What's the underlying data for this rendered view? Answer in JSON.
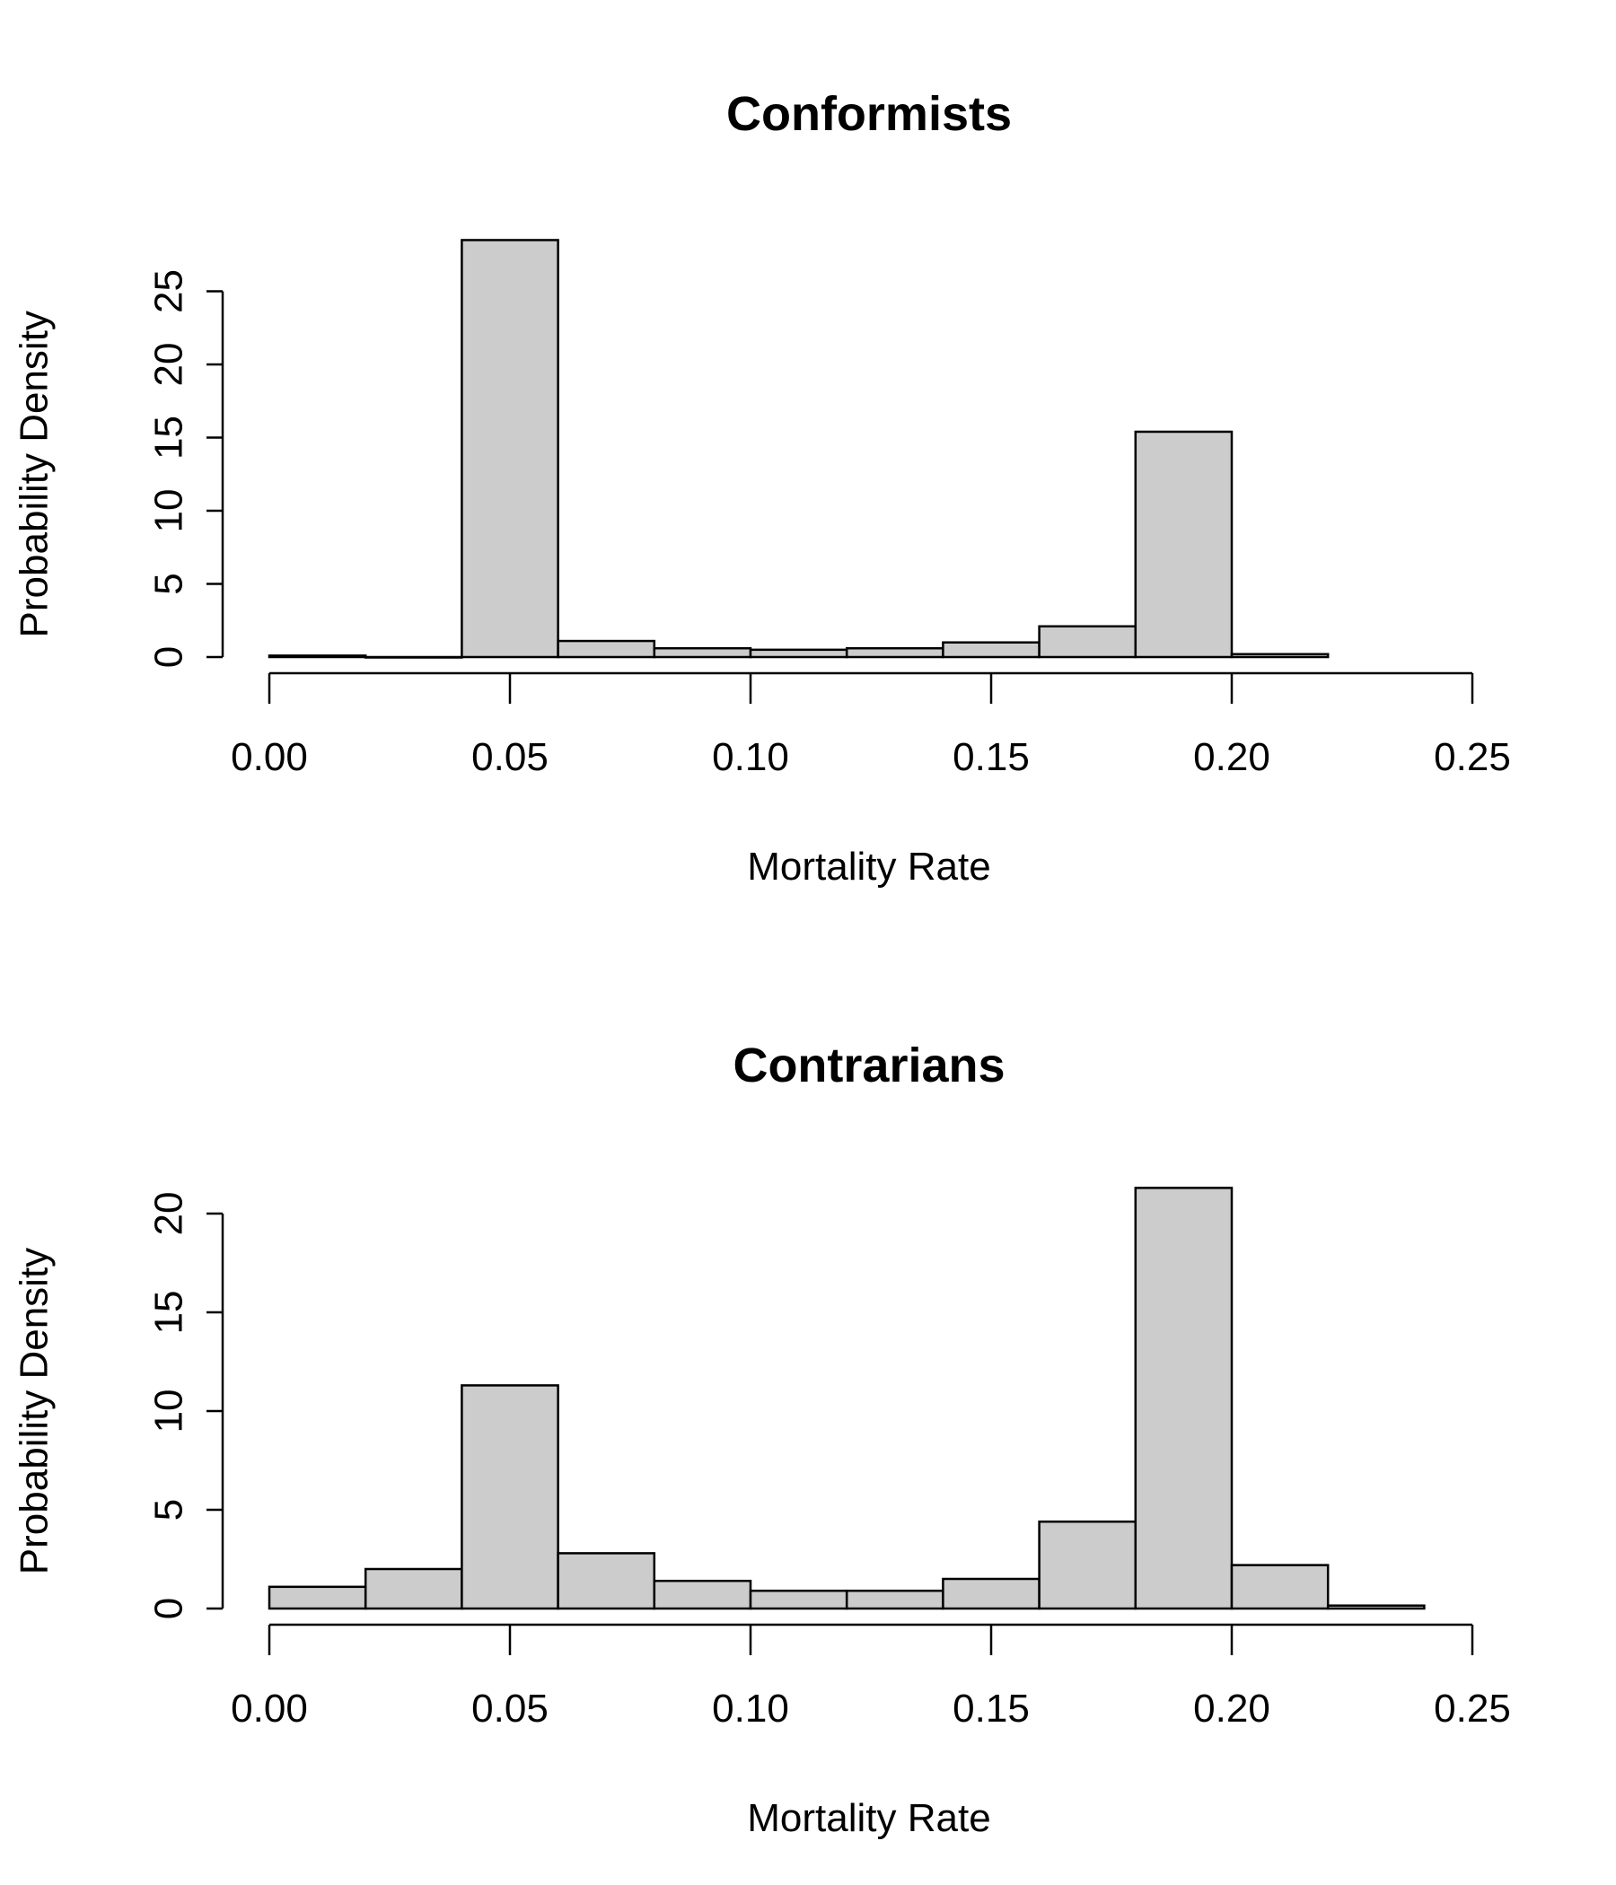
{
  "chart_data": [
    {
      "type": "bar",
      "title": "Conformists",
      "xlabel": "Mortality Rate",
      "ylabel": "Probability Density",
      "bin_edges": [
        0.0,
        0.02,
        0.04,
        0.06,
        0.08,
        0.1,
        0.12,
        0.14,
        0.16,
        0.18,
        0.2,
        0.22
      ],
      "values": [
        0.1,
        0.0,
        28.5,
        1.1,
        0.6,
        0.5,
        0.6,
        1.0,
        2.1,
        15.4,
        0.2
      ],
      "xlim": [
        0.0,
        0.25
      ],
      "ylim": [
        0,
        25
      ],
      "xticks": [
        "0.00",
        "0.05",
        "0.10",
        "0.15",
        "0.20",
        "0.25"
      ],
      "yticks": [
        "0",
        "5",
        "10",
        "15",
        "20",
        "25"
      ],
      "grid": false,
      "colors": {
        "bar_fill": "#cccccc",
        "bar_stroke": "#000000"
      }
    },
    {
      "type": "bar",
      "title": "Contrarians",
      "xlabel": "Mortality Rate",
      "ylabel": "Probability Density",
      "bin_edges": [
        0.0,
        0.02,
        0.04,
        0.06,
        0.08,
        0.1,
        0.12,
        0.14,
        0.16,
        0.18,
        0.2,
        0.22,
        0.24
      ],
      "values": [
        1.1,
        2.0,
        11.3,
        2.8,
        1.4,
        0.9,
        0.9,
        1.5,
        4.4,
        21.3,
        2.2,
        0.15
      ],
      "xlim": [
        0.0,
        0.25
      ],
      "ylim": [
        0,
        20
      ],
      "xticks": [
        "0.00",
        "0.05",
        "0.10",
        "0.15",
        "0.20",
        "0.25"
      ],
      "yticks": [
        "0",
        "5",
        "10",
        "15",
        "20"
      ],
      "grid": false,
      "colors": {
        "bar_fill": "#cccccc",
        "bar_stroke": "#000000"
      }
    }
  ]
}
